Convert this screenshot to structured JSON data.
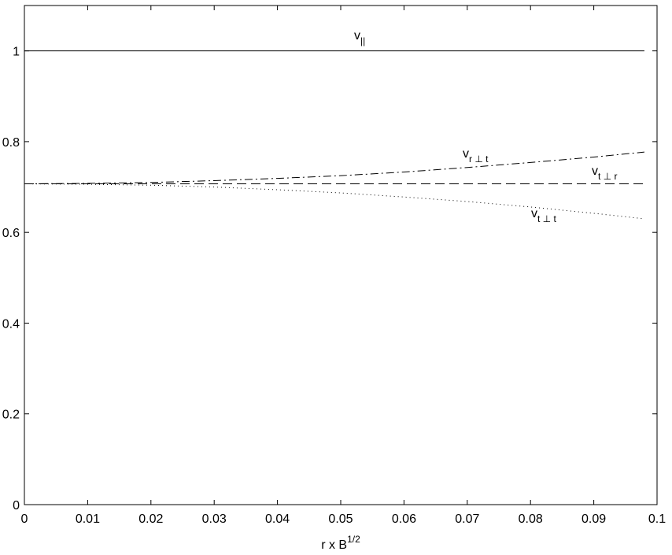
{
  "chart_data": {
    "type": "line",
    "xlabel": "r x B",
    "xlabel_superscript": "1/2",
    "x": [
      0,
      0.01,
      0.02,
      0.03,
      0.04,
      0.05,
      0.06,
      0.07,
      0.08,
      0.09,
      0.098
    ],
    "series": [
      {
        "name": "v",
        "subscript": "||",
        "color": "#000000",
        "dash": "solid",
        "values": [
          1,
          1,
          1,
          1,
          1,
          1,
          1,
          1,
          1,
          1,
          1
        ]
      },
      {
        "name": "v",
        "subscript": "r ⊥ t",
        "color": "#000000",
        "dash": "dashdot",
        "values": [
          0.707,
          0.708,
          0.71,
          0.714,
          0.719,
          0.725,
          0.733,
          0.743,
          0.754,
          0.766,
          0.777
        ]
      },
      {
        "name": "v",
        "subscript": "t ⊥ r",
        "color": "#000000",
        "dash": "dashed",
        "values": [
          0.707,
          0.707,
          0.707,
          0.707,
          0.707,
          0.707,
          0.707,
          0.707,
          0.707,
          0.707,
          0.707
        ]
      },
      {
        "name": "v",
        "subscript": "t ⊥ t",
        "color": "#000000",
        "dash": "dotted",
        "values": [
          0.707,
          0.706,
          0.704,
          0.7,
          0.694,
          0.687,
          0.678,
          0.668,
          0.656,
          0.642,
          0.63
        ]
      }
    ],
    "xlim": [
      0,
      0.1
    ],
    "xticks": [
      0,
      0.01,
      0.02,
      0.03,
      0.04,
      0.05,
      0.06,
      0.07,
      0.08,
      0.09,
      0.1
    ],
    "ylim": [
      0,
      1.1
    ],
    "yticks": [
      0,
      0.2,
      0.4,
      0.6,
      0.8,
      1
    ],
    "grid": false
  }
}
